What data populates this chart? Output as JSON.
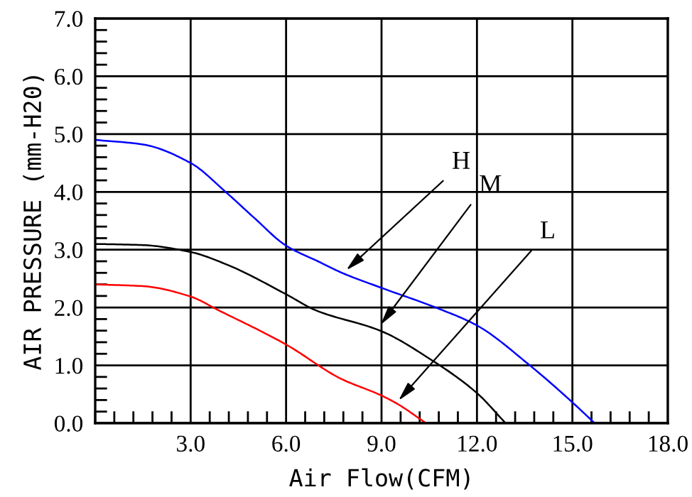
{
  "chart_data": {
    "type": "line",
    "xlabel": "Air Flow(CFM)",
    "ylabel": "AIR PRESSURE (mm-H20)",
    "xlim": [
      0,
      18
    ],
    "xticks": [
      {
        "value": 3,
        "label": "3.0"
      },
      {
        "value": 6,
        "label": "6.0"
      },
      {
        "value": 9,
        "label": "9.0"
      },
      {
        "value": 12,
        "label": "12.0"
      },
      {
        "value": 15,
        "label": "15.0"
      },
      {
        "value": 18,
        "label": "18.0"
      }
    ],
    "ylim": [
      0,
      7
    ],
    "yticks": [
      {
        "value": 0,
        "label": "0.0"
      },
      {
        "value": 1,
        "label": "1.0"
      },
      {
        "value": 2,
        "label": "2.0"
      },
      {
        "value": 3,
        "label": "3.0"
      },
      {
        "value": 4,
        "label": "4.0"
      },
      {
        "value": 5,
        "label": "5.0"
      },
      {
        "value": 6,
        "label": "6.0"
      },
      {
        "value": 7,
        "label": "7.0"
      }
    ],
    "grid": true,
    "series": [
      {
        "color": "#0000ff",
        "x": [
          0,
          1.5,
          3,
          4.1,
          5,
          6,
          7,
          7.8,
          9,
          10.8,
          12,
          13.66,
          14.94,
          15.7
        ],
        "values": [
          4.9,
          4.82,
          4.5,
          4.0,
          3.55,
          3.07,
          2.8,
          2.59,
          2.34,
          1.98,
          1.69,
          1.0,
          0.39,
          0
        ]
      },
      {
        "color": "#000000",
        "x": [
          0,
          1.5,
          3,
          4.15,
          6,
          6.9,
          9,
          10.55,
          12,
          12.9
        ],
        "values": [
          3.1,
          3.08,
          2.96,
          2.74,
          2.23,
          1.96,
          1.59,
          1.1,
          0.52,
          0
        ]
      },
      {
        "color": "#ff0000",
        "x": [
          0,
          1.5,
          3,
          3.85,
          6,
          7.72,
          8.99,
          9.48,
          10.4
        ],
        "values": [
          2.4,
          2.37,
          2.19,
          1.96,
          1.36,
          0.77,
          0.48,
          0.34,
          0
        ]
      }
    ],
    "annotations": [
      {
        "text": "H",
        "x": 7.8,
        "y": 2.6
      },
      {
        "text": "M",
        "x": 8.9,
        "y": 1.65
      },
      {
        "text": "L",
        "x": 9.45,
        "y": 0.34
      }
    ]
  }
}
